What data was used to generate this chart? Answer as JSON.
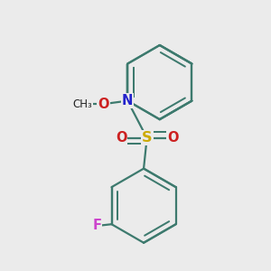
{
  "background_color": "#ebebeb",
  "bond_color": "#3d7a6e",
  "bond_width": 1.6,
  "atom_colors": {
    "N": "#2222cc",
    "O": "#cc2020",
    "S": "#ccaa00",
    "F": "#cc44cc",
    "C": "#000000"
  },
  "font_size_atom": 10.5,
  "figsize": [
    3.0,
    3.0
  ],
  "dpi": 100
}
